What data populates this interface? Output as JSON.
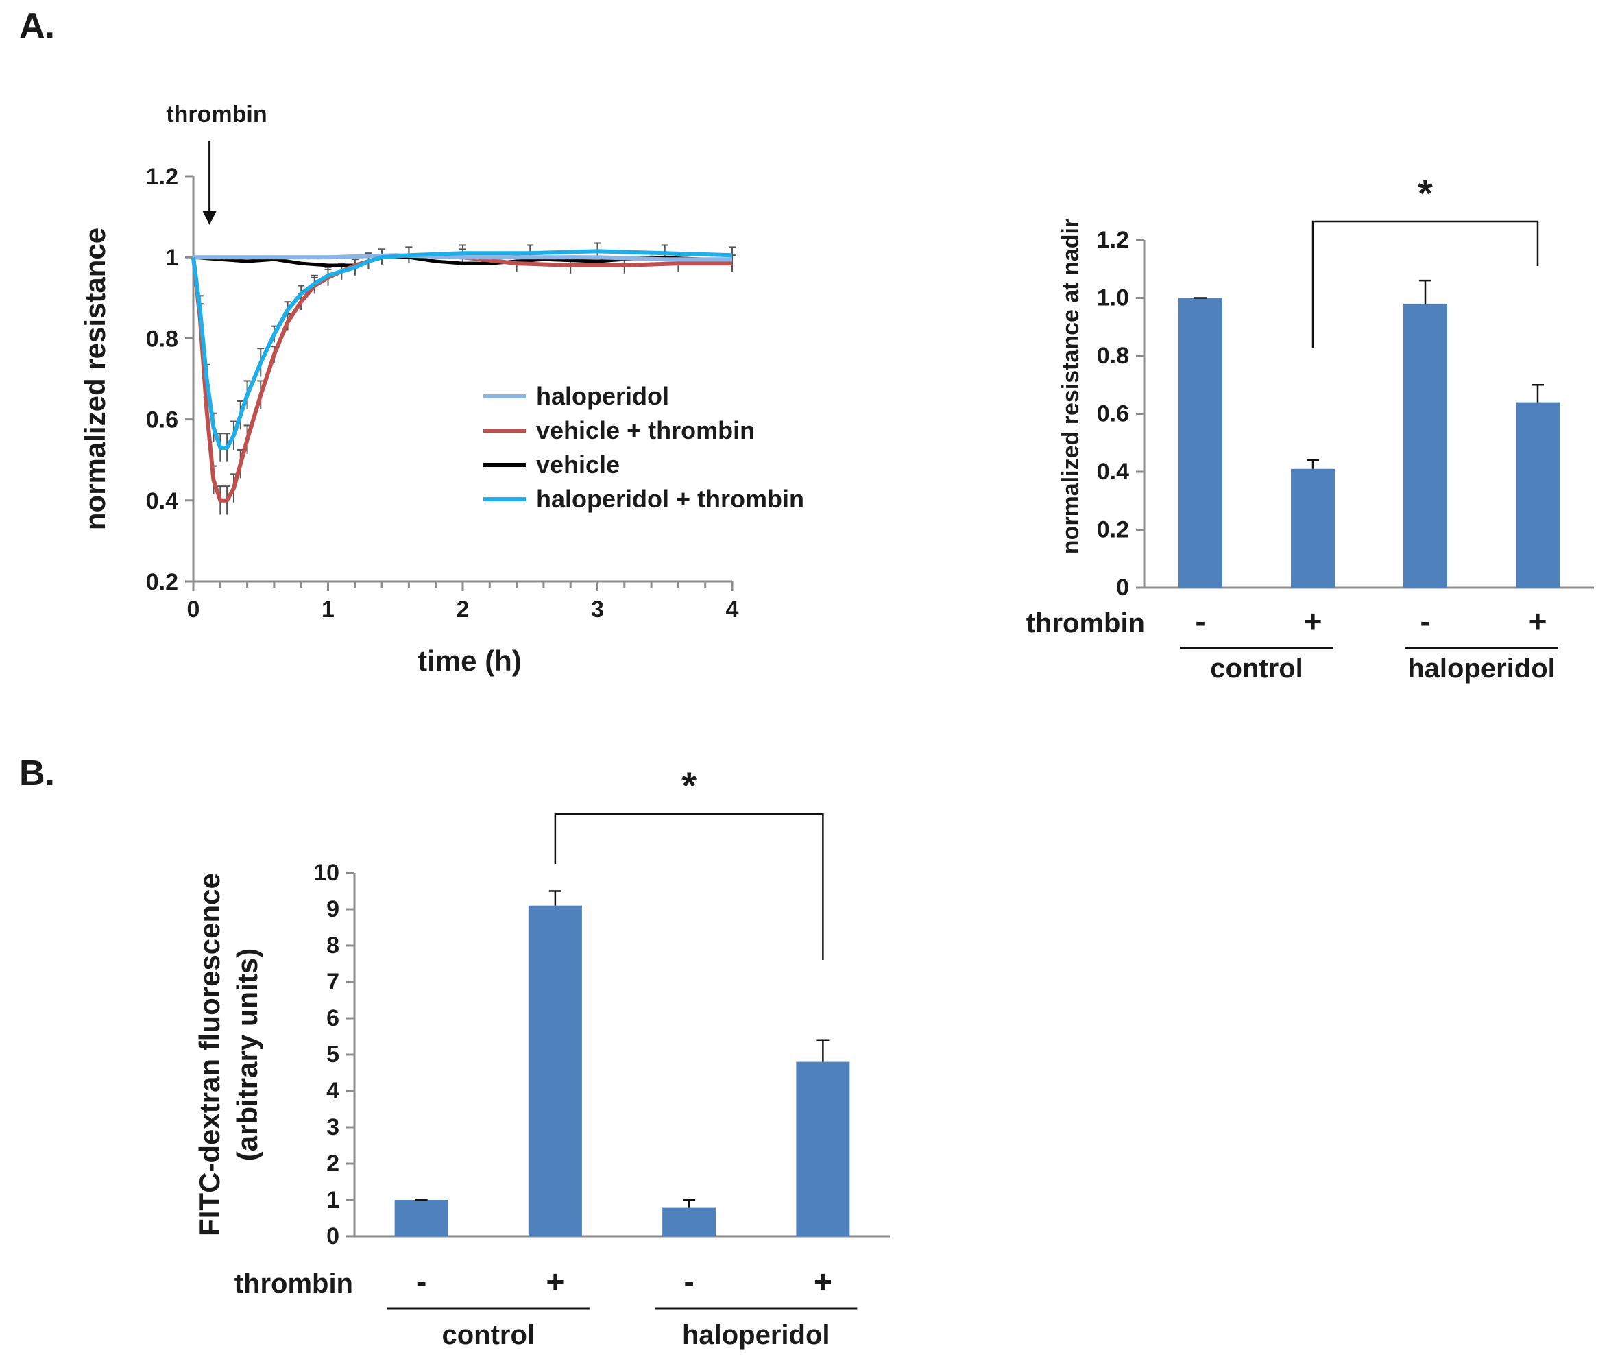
{
  "panels": {
    "a": "A.",
    "b": "B."
  },
  "chart_data": [
    {
      "id": "A-time-course",
      "type": "line",
      "title": "",
      "xlabel": "time (h)",
      "ylabel": "normalized resistance",
      "xlim": [
        0,
        4
      ],
      "ylim": [
        0.2,
        1.2
      ],
      "xticks": [
        "0",
        "1",
        "2",
        "3",
        "4"
      ],
      "yticks": [
        "0.2",
        "0.4",
        "0.6",
        "0.8",
        "1",
        "1.2"
      ],
      "annotation": "thrombin",
      "annotation_x": 0.12,
      "legend_position": "center-right",
      "series": [
        {
          "name": "haloperidol",
          "color": "#8db4e2",
          "points": [
            [
              0,
              1
            ],
            [
              0.5,
              1.0
            ],
            [
              1.0,
              1.0
            ],
            [
              1.5,
              1.005
            ],
            [
              2,
              1.0
            ],
            [
              2.5,
              1.0
            ],
            [
              3,
              1.0
            ],
            [
              3.5,
              0.995
            ],
            [
              4,
              0.995
            ]
          ]
        },
        {
          "name": "vehicle + thrombin",
          "color": "#c0504d",
          "points": [
            [
              0,
              1
            ],
            [
              0.05,
              0.85
            ],
            [
              0.1,
              0.62
            ],
            [
              0.15,
              0.45
            ],
            [
              0.2,
              0.4
            ],
            [
              0.25,
              0.4
            ],
            [
              0.3,
              0.43
            ],
            [
              0.35,
              0.49
            ],
            [
              0.4,
              0.55
            ],
            [
              0.5,
              0.66
            ],
            [
              0.6,
              0.76
            ],
            [
              0.7,
              0.84
            ],
            [
              0.8,
              0.89
            ],
            [
              0.9,
              0.93
            ],
            [
              1.0,
              0.95
            ],
            [
              1.1,
              0.965
            ],
            [
              1.2,
              0.98
            ],
            [
              1.3,
              0.99
            ],
            [
              1.4,
              1.0
            ],
            [
              1.6,
              1.005
            ],
            [
              2,
              1.0
            ],
            [
              2.4,
              0.985
            ],
            [
              2.8,
              0.98
            ],
            [
              3.2,
              0.98
            ],
            [
              3.6,
              0.985
            ],
            [
              4,
              0.985
            ]
          ]
        },
        {
          "name": "vehicle",
          "color": "#000000",
          "points": [
            [
              0,
              1
            ],
            [
              0.2,
              0.995
            ],
            [
              0.4,
              0.99
            ],
            [
              0.6,
              0.995
            ],
            [
              0.8,
              0.985
            ],
            [
              1.0,
              0.98
            ],
            [
              1.2,
              0.98
            ],
            [
              1.4,
              1.0
            ],
            [
              1.6,
              1.0
            ],
            [
              1.8,
              0.99
            ],
            [
              2.0,
              0.985
            ],
            [
              2.2,
              0.985
            ],
            [
              2.6,
              0.995
            ],
            [
              3.0,
              0.99
            ],
            [
              3.4,
              1.0
            ],
            [
              3.8,
              0.995
            ],
            [
              4,
              0.995
            ]
          ]
        },
        {
          "name": "haloperidol + thrombin",
          "color": "#1faee8",
          "points": [
            [
              0,
              1
            ],
            [
              0.05,
              0.87
            ],
            [
              0.1,
              0.7
            ],
            [
              0.15,
              0.58
            ],
            [
              0.2,
              0.53
            ],
            [
              0.25,
              0.53
            ],
            [
              0.3,
              0.56
            ],
            [
              0.35,
              0.61
            ],
            [
              0.4,
              0.66
            ],
            [
              0.5,
              0.74
            ],
            [
              0.6,
              0.81
            ],
            [
              0.7,
              0.87
            ],
            [
              0.8,
              0.91
            ],
            [
              0.9,
              0.935
            ],
            [
              1.0,
              0.955
            ],
            [
              1.1,
              0.965
            ],
            [
              1.2,
              0.975
            ],
            [
              1.3,
              0.99
            ],
            [
              1.4,
              1.0
            ],
            [
              1.6,
              1.005
            ],
            [
              2,
              1.01
            ],
            [
              2.5,
              1.01
            ],
            [
              3,
              1.015
            ],
            [
              3.5,
              1.01
            ],
            [
              4,
              1.005
            ]
          ]
        }
      ]
    },
    {
      "id": "A-nadir-bars",
      "type": "bar",
      "title": "",
      "xlabel": "",
      "ylabel": "normalized resistance at nadir",
      "ylim": [
        0,
        1.2
      ],
      "yticks": [
        "0",
        "0.2",
        "0.4",
        "0.6",
        "0.8",
        "1.0",
        "1.2"
      ],
      "color": "#4f81bd",
      "row_label": "thrombin",
      "categories": [
        "-",
        "+",
        "-",
        "+"
      ],
      "values": [
        1.0,
        0.41,
        0.98,
        0.64
      ],
      "errors": [
        0.0,
        0.03,
        0.08,
        0.06
      ],
      "groups": [
        {
          "label": "control",
          "members": [
            0,
            1
          ]
        },
        {
          "label": "haloperidol",
          "members": [
            2,
            3
          ]
        }
      ],
      "significance": {
        "pair": [
          1,
          3
        ],
        "label": "*"
      }
    },
    {
      "id": "B-fitc-bars",
      "type": "bar",
      "title": "",
      "xlabel": "",
      "ylabel": "FITC-dextran fluorescence",
      "ylabel2": "(arbitrary units)",
      "ylim": [
        0,
        10
      ],
      "yticks": [
        "0",
        "1",
        "2",
        "3",
        "4",
        "5",
        "6",
        "7",
        "8",
        "9",
        "10"
      ],
      "color": "#4f81bd",
      "row_label": "thrombin",
      "categories": [
        "-",
        "+",
        "-",
        "+"
      ],
      "values": [
        1.0,
        9.1,
        0.8,
        4.8
      ],
      "errors": [
        0.0,
        0.4,
        0.2,
        0.6
      ],
      "groups": [
        {
          "label": "control",
          "members": [
            0,
            1
          ]
        },
        {
          "label": "haloperidol",
          "members": [
            2,
            3
          ]
        }
      ],
      "significance": {
        "pair": [
          1,
          3
        ],
        "label": "*"
      }
    }
  ]
}
